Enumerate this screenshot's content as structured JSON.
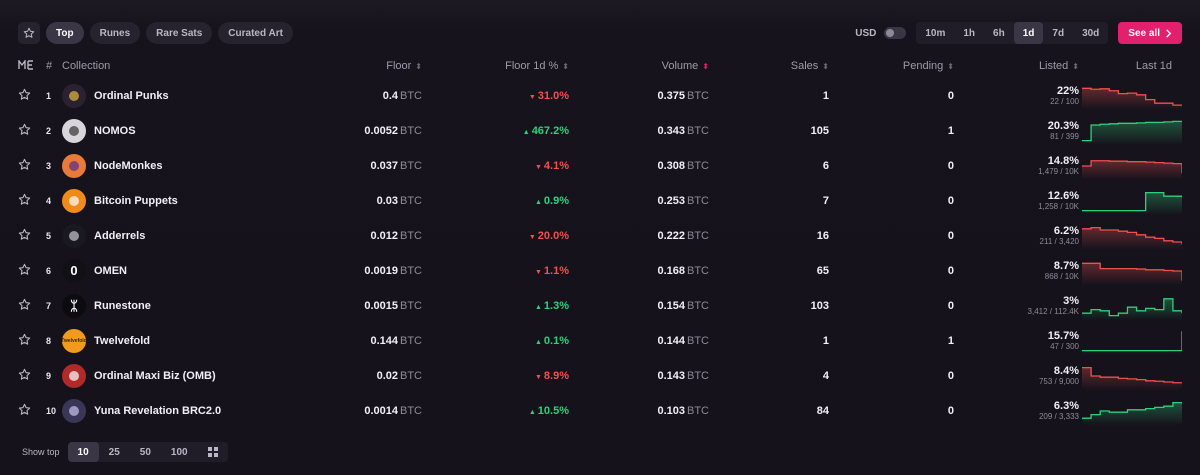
{
  "colors": {
    "accent": "#e2206e",
    "up": "#2ed17a",
    "down": "#f0504e",
    "bg": "#15121b"
  },
  "tabs": [
    {
      "label": "Top",
      "active": true
    },
    {
      "label": "Runes",
      "active": false
    },
    {
      "label": "Rare Sats",
      "active": false
    },
    {
      "label": "Curated Art",
      "active": false
    }
  ],
  "currency_toggle": {
    "label": "USD",
    "on": false
  },
  "timeframes": [
    {
      "label": "10m",
      "active": false
    },
    {
      "label": "1h",
      "active": false
    },
    {
      "label": "6h",
      "active": false
    },
    {
      "label": "1d",
      "active": true
    },
    {
      "label": "7d",
      "active": false
    },
    {
      "label": "30d",
      "active": false
    }
  ],
  "see_all": {
    "label": "See all",
    "icon": "chevron-right-icon"
  },
  "columns": {
    "logo": "ME",
    "rank": "#",
    "collection": "Collection",
    "floor": "Floor",
    "floor_change": "Floor 1d %",
    "volume": "Volume",
    "sales": "Sales",
    "pending": "Pending",
    "listed": "Listed",
    "last": "Last 1d"
  },
  "unit": "BTC",
  "rows": [
    {
      "rank": "1",
      "name": "Ordinal Punks",
      "floor": "0.4",
      "change": "31.0%",
      "dir": "down",
      "volume": "0.375",
      "sales": "1",
      "pending": "0",
      "listed_pct": "22%",
      "listed_sub": "22 / 100",
      "avatar_bg": "#2a2232",
      "avatar_fg": "#e8b93a",
      "avatar_text": "",
      "trend": [
        0.82,
        0.78,
        0.8,
        0.72,
        0.6,
        0.62,
        0.55,
        0.35,
        0.2,
        0.2,
        0.12,
        0.1
      ]
    },
    {
      "rank": "2",
      "name": "NOMOS",
      "floor": "0.0052",
      "change": "467.2%",
      "dir": "up",
      "volume": "0.343",
      "sales": "105",
      "pending": "1",
      "listed_pct": "20.3%",
      "listed_sub": "81 / 399",
      "avatar_bg": "#d8d6dc",
      "avatar_fg": "#333",
      "avatar_text": "",
      "trend": [
        0.1,
        0.75,
        0.78,
        0.8,
        0.82,
        0.82,
        0.84,
        0.86,
        0.86,
        0.88,
        0.9,
        0.92
      ]
    },
    {
      "rank": "3",
      "name": "NodeMonkes",
      "floor": "0.037",
      "change": "4.1%",
      "dir": "down",
      "volume": "0.308",
      "sales": "6",
      "pending": "0",
      "listed_pct": "14.8%",
      "listed_sub": "1,479 / 10K",
      "avatar_bg": "#e87a3a",
      "avatar_fg": "#5a2d8c",
      "avatar_text": "",
      "trend": [
        0.5,
        0.72,
        0.72,
        0.7,
        0.7,
        0.68,
        0.68,
        0.66,
        0.64,
        0.62,
        0.6,
        0.2
      ]
    },
    {
      "rank": "4",
      "name": "Bitcoin Puppets",
      "floor": "0.03",
      "change": "0.9%",
      "dir": "up",
      "volume": "0.253",
      "sales": "7",
      "pending": "0",
      "listed_pct": "12.6%",
      "listed_sub": "1,258 / 10K",
      "avatar_bg": "#f08a1a",
      "avatar_fg": "#fff",
      "avatar_text": "",
      "trend": [
        0.1,
        0.1,
        0.1,
        0.1,
        0.1,
        0.1,
        0.1,
        0.85,
        0.85,
        0.7,
        0.7,
        0.65
      ]
    },
    {
      "rank": "5",
      "name": "Adderrels",
      "floor": "0.012",
      "change": "20.0%",
      "dir": "down",
      "volume": "0.222",
      "sales": "16",
      "pending": "0",
      "listed_pct": "6.2%",
      "listed_sub": "211 / 3,420",
      "avatar_bg": "#1a1820",
      "avatar_fg": "#c8c4d0",
      "avatar_text": "",
      "trend": [
        0.8,
        0.85,
        0.75,
        0.75,
        0.7,
        0.65,
        0.55,
        0.45,
        0.4,
        0.3,
        0.25,
        0.15
      ]
    },
    {
      "rank": "6",
      "name": "OMEN",
      "floor": "0.0019",
      "change": "1.1%",
      "dir": "down",
      "volume": "0.168",
      "sales": "65",
      "pending": "0",
      "listed_pct": "8.7%",
      "listed_sub": "868 / 10K",
      "avatar_bg": "#111014",
      "avatar_fg": "#ffffff",
      "avatar_text": "0",
      "trend": [
        0.82,
        0.82,
        0.6,
        0.6,
        0.6,
        0.6,
        0.58,
        0.55,
        0.55,
        0.52,
        0.5,
        0.1
      ]
    },
    {
      "rank": "7",
      "name": "Runestone",
      "floor": "0.0015",
      "change": "1.3%",
      "dir": "up",
      "volume": "0.154",
      "sales": "103",
      "pending": "0",
      "listed_pct": "3%",
      "listed_sub": "3,412 / 112.4K",
      "avatar_bg": "#0c0b0f",
      "avatar_fg": "#ffffff",
      "avatar_text": "ᛯ",
      "trend": [
        0.2,
        0.35,
        0.3,
        0.1,
        0.2,
        0.45,
        0.3,
        0.4,
        0.35,
        0.8,
        0.3,
        0.2
      ]
    },
    {
      "rank": "8",
      "name": "Twelvefold",
      "floor": "0.144",
      "change": "0.1%",
      "dir": "up",
      "volume": "0.144",
      "sales": "1",
      "pending": "1",
      "listed_pct": "15.7%",
      "listed_sub": "47 / 300",
      "avatar_bg": "#f29a1c",
      "avatar_fg": "#3a2200",
      "avatar_text": "Twelvefold",
      "trend": [
        0.1,
        0.1,
        0.1,
        0.1,
        0.1,
        0.1,
        0.1,
        0.1,
        0.1,
        0.1,
        0.1,
        0.9
      ]
    },
    {
      "rank": "9",
      "name": "Ordinal Maxi Biz (OMB)",
      "floor": "0.02",
      "change": "8.9%",
      "dir": "down",
      "volume": "0.143",
      "sales": "4",
      "pending": "0",
      "listed_pct": "8.4%",
      "listed_sub": "753 / 9,000",
      "avatar_bg": "#b02a2a",
      "avatar_fg": "#fff",
      "avatar_text": "",
      "trend": [
        0.85,
        0.5,
        0.45,
        0.45,
        0.4,
        0.38,
        0.35,
        0.3,
        0.28,
        0.25,
        0.22,
        0.2
      ]
    },
    {
      "rank": "10",
      "name": "Yuna Revelation BRC2.0",
      "floor": "0.0014",
      "change": "10.5%",
      "dir": "up",
      "volume": "0.103",
      "sales": "84",
      "pending": "0",
      "listed_pct": "6.3%",
      "listed_sub": "209 / 3,333",
      "avatar_bg": "#3a3656",
      "avatar_fg": "#c8c4f0",
      "avatar_text": "",
      "trend": [
        0.2,
        0.35,
        0.5,
        0.45,
        0.45,
        0.55,
        0.55,
        0.6,
        0.65,
        0.7,
        0.85,
        0.85
      ]
    }
  ],
  "footer": {
    "show_top_label": "Show top",
    "options": [
      {
        "label": "10",
        "active": true
      },
      {
        "label": "25",
        "active": false
      },
      {
        "label": "50",
        "active": false
      },
      {
        "label": "100",
        "active": false
      }
    ],
    "grid_icon": "grid-icon"
  }
}
